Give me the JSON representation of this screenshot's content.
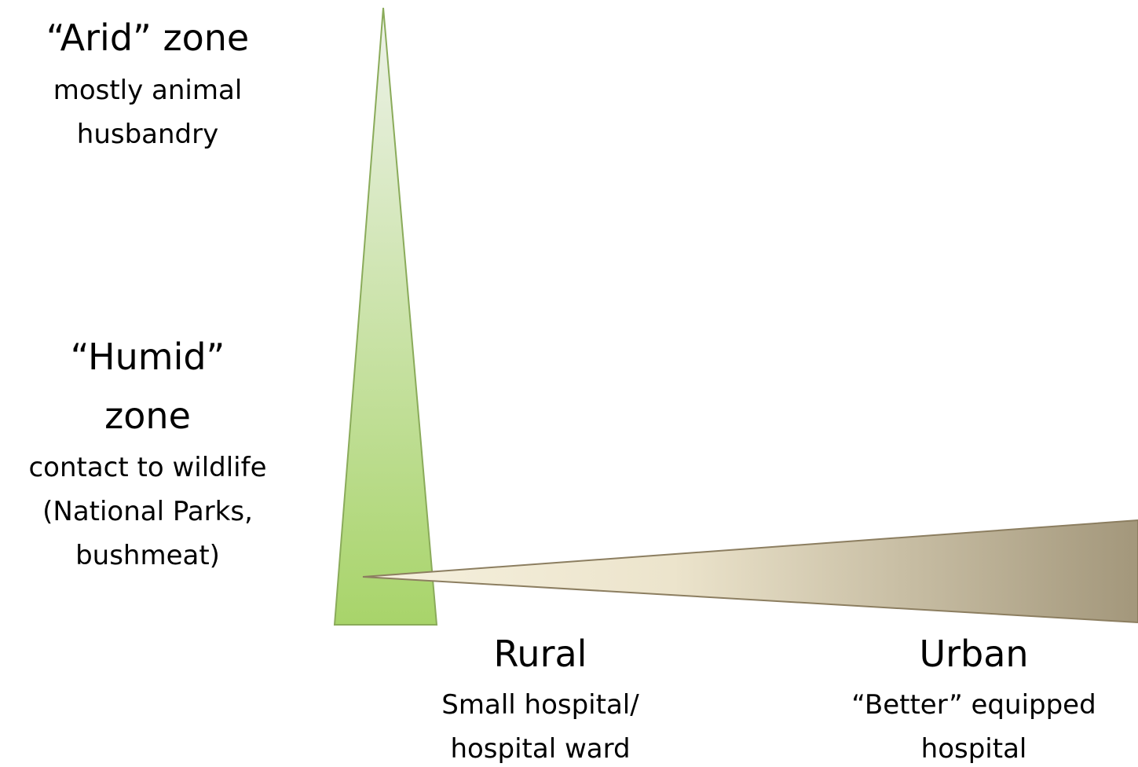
{
  "left_labels": [
    {
      "title": "“Arid” zone",
      "lines": [
        "mostly animal",
        "husbandry"
      ]
    },
    {
      "title_lines": [
        "“Humid”",
        "zone"
      ],
      "lines": [
        "contact to wildlife",
        "(National Parks,",
        "bushmeat)"
      ]
    }
  ],
  "bottom_labels": [
    {
      "title": "Rural",
      "lines": [
        "Small hospital/",
        "hospital ward"
      ]
    },
    {
      "title": "Urban",
      "lines": [
        "“Better” equipped",
        "hospital"
      ]
    }
  ]
}
